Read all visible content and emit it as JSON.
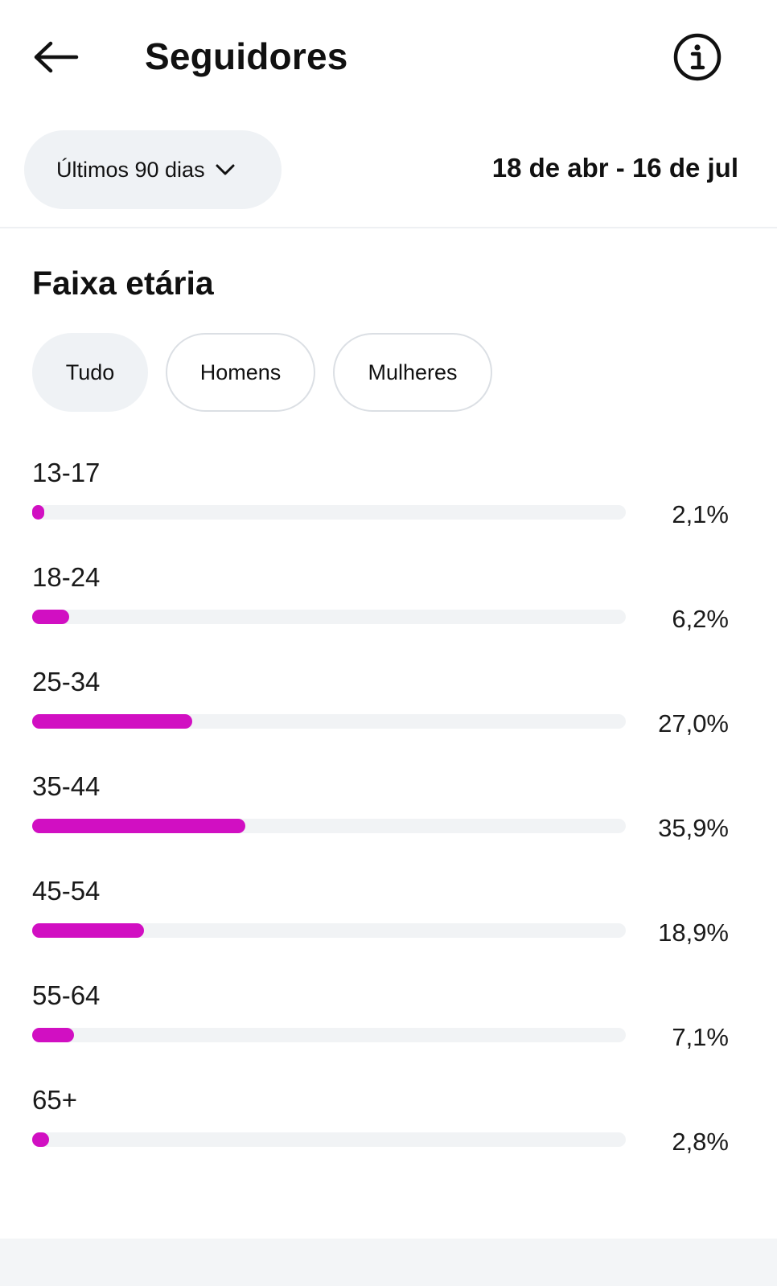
{
  "header": {
    "title": "Seguidores",
    "back_icon": "arrow-left-icon",
    "info_icon": "info-circle-icon"
  },
  "date_filter": {
    "range_label": "Últimos 90 dias",
    "range_icon": "chevron-down-icon",
    "date_range": "18 de abr - 16 de jul"
  },
  "section": {
    "title": "Faixa etária",
    "filters": [
      {
        "label": "Tudo",
        "selected": true
      },
      {
        "label": "Homens",
        "selected": false
      },
      {
        "label": "Mulheres",
        "selected": false
      }
    ]
  },
  "colors": {
    "bar_fill": "#d10fc2",
    "bar_track": "#f1f3f5"
  },
  "age_groups": [
    {
      "label": "13-17",
      "percent_text": "2,1%",
      "value": 2.1
    },
    {
      "label": "18-24",
      "percent_text": "6,2%",
      "value": 6.2
    },
    {
      "label": "25-34",
      "percent_text": "27,0%",
      "value": 27.0
    },
    {
      "label": "35-44",
      "percent_text": "35,9%",
      "value": 35.9
    },
    {
      "label": "45-54",
      "percent_text": "18,9%",
      "value": 18.9
    },
    {
      "label": "55-64",
      "percent_text": "7,1%",
      "value": 7.1
    },
    {
      "label": "65+",
      "percent_text": "2,8%",
      "value": 2.8
    }
  ]
}
